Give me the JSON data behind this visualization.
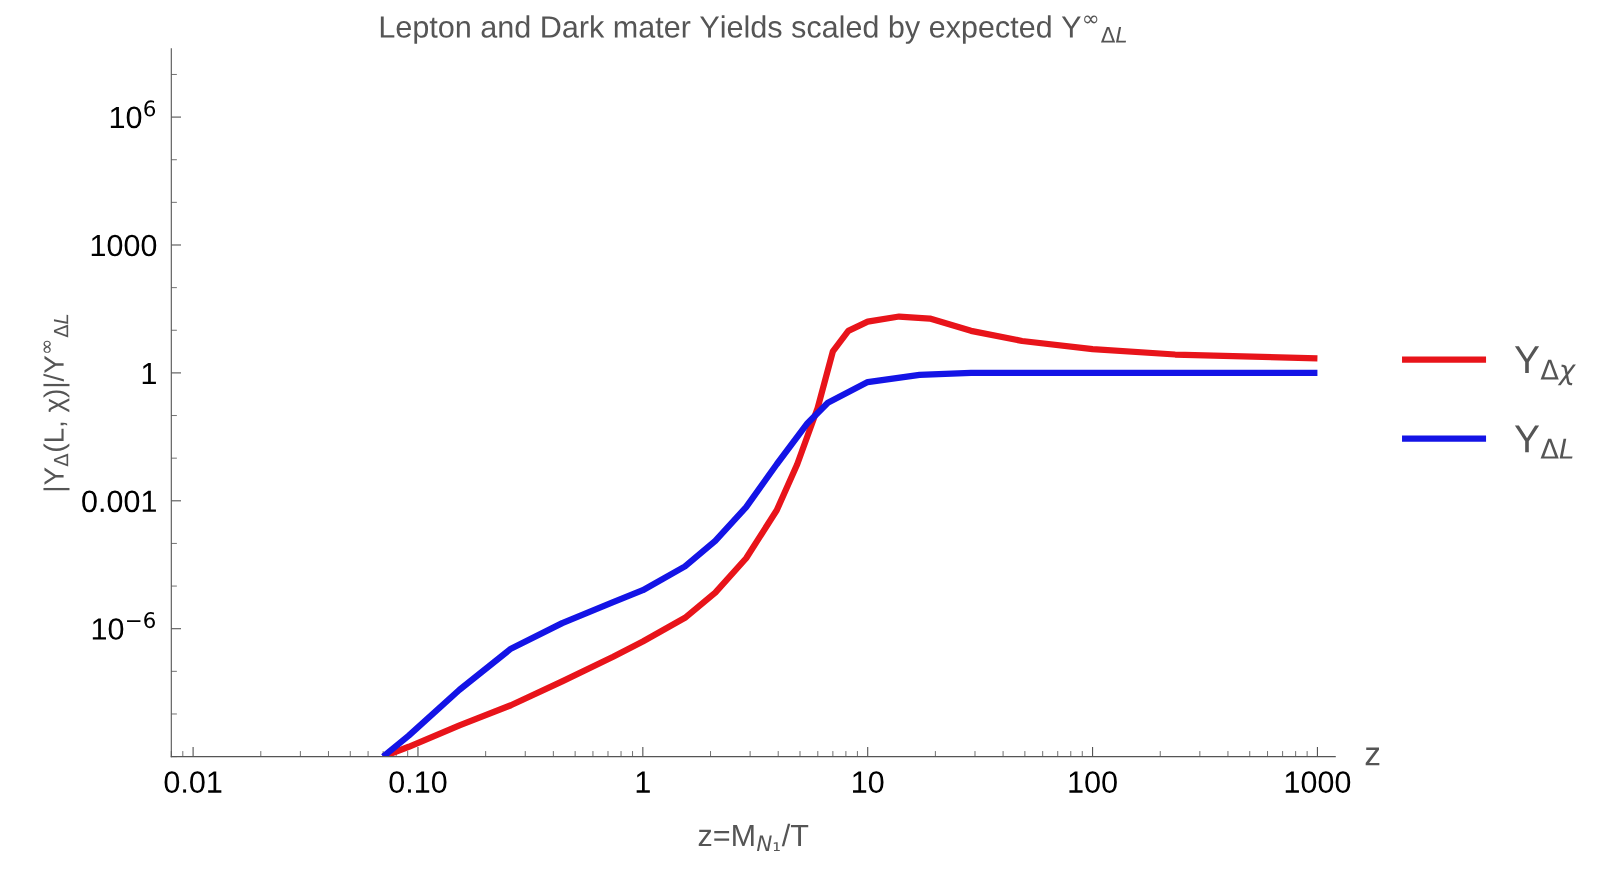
{
  "chart_data": {
    "type": "line",
    "title": "Lepton and Dark mater Yields scaled by expected Y$^{∞}$$_{ΔL}$",
    "xlabel": "z=M$_{N₁}$/T",
    "ylabel": "|Y$_{Δ}$(L, χ)|/Y$^{∞}$$_{ΔL}$",
    "annotations": [
      "z"
    ],
    "series": [
      {
        "name": "Y$_{Δχ}$",
        "color": "#e8141a",
        "x": [
          0.07,
          0.091,
          0.153,
          0.259,
          0.438,
          0.738,
          1,
          1.54,
          2.1,
          2.88,
          3.94,
          4.86,
          5.99,
          7.0,
          8.2,
          10,
          13.8,
          18.9,
          28.8,
          48.6,
          100,
          233,
          1000
        ],
        "values": [
          1e-09,
          1.7e-09,
          5.4e-09,
          1.6e-08,
          5.8e-08,
          2.2e-07,
          5e-07,
          1.8e-06,
          7e-06,
          4.5e-05,
          0.0006,
          0.0072,
          0.15,
          3.2,
          9.7,
          16,
          21,
          18.8,
          9.7,
          5.6,
          3.6,
          2.7,
          2.2
        ]
      },
      {
        "name": "Y$_{ΔL}$",
        "color": "#1414e6",
        "x": [
          0.07,
          0.091,
          0.153,
          0.259,
          0.438,
          0.738,
          1,
          1.54,
          2.1,
          2.88,
          3.94,
          5.4,
          6.65,
          10,
          17,
          28.8,
          1000
        ],
        "values": [
          1e-09,
          3.1e-09,
          3.7e-08,
          3.4e-07,
          1.35e-06,
          4.2e-06,
          8e-06,
          2.9e-05,
          0.000115,
          0.00071,
          0.0072,
          0.066,
          0.2,
          0.61,
          0.9,
          1,
          1
        ]
      }
    ],
    "log": "xy",
    "xlim": [
      0.008,
      1200
    ],
    "ylim": [
      1e-09,
      40000000.0
    ],
    "xticks": [
      {
        "value": 0.01,
        "label": "0.01"
      },
      {
        "value": 0.1,
        "label": "0.10"
      },
      1,
      10,
      100,
      1000
    ],
    "yticks": [
      {
        "value": 1e-06,
        "label": "10$^{−6}$"
      },
      {
        "value": 0.001,
        "label": "0.001"
      },
      1,
      1000,
      {
        "value": 1000000,
        "label": "10$^{6}$"
      }
    ],
    "grid": false,
    "legend": "right",
    "marker": "none",
    "line_style": "solid"
  }
}
